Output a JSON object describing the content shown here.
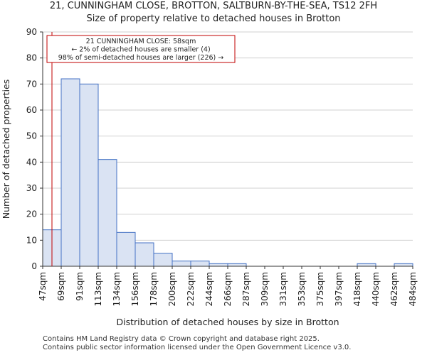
{
  "title": "21, CUNNINGHAM CLOSE, BROTTON, SALTBURN-BY-THE-SEA, TS12 2FH",
  "subtitle": "Size of property relative to detached houses in Brotton",
  "footer": [
    "Contains HM Land Registry data © Crown copyright and database right 2025.",
    "Contains public sector information licensed under the Open Government Licence v3.0."
  ],
  "colors": {
    "bar_fill": "#dae3f3",
    "bar_stroke": "#4472c4",
    "marker": "#c00000",
    "grid": "#d0d0d0"
  },
  "chart_data": {
    "type": "bar",
    "xlabel": "Distribution of detached houses by size in Brotton",
    "ylabel": "Number of detached properties",
    "ylim": [
      0,
      90
    ],
    "yticks": [
      0,
      10,
      20,
      30,
      40,
      50,
      60,
      70,
      80,
      90
    ],
    "grid": true,
    "bin_edges": [
      "47sqm",
      "69sqm",
      "91sqm",
      "113sqm",
      "134sqm",
      "156sqm",
      "178sqm",
      "200sqm",
      "222sqm",
      "244sqm",
      "266sqm",
      "287sqm",
      "309sqm",
      "331sqm",
      "353sqm",
      "375sqm",
      "397sqm",
      "418sqm",
      "440sqm",
      "462sqm",
      "484sqm"
    ],
    "values": [
      14,
      72,
      70,
      41,
      13,
      9,
      5,
      2,
      2,
      1,
      1,
      0,
      0,
      0,
      0,
      0,
      0,
      1,
      0,
      1
    ],
    "marker": {
      "value_sqm": 58,
      "annotation": [
        "21 CUNNINGHAM CLOSE: 58sqm",
        "← 2% of detached houses are smaller (4)",
        "98% of semi-detached houses are larger (226) →"
      ]
    }
  }
}
